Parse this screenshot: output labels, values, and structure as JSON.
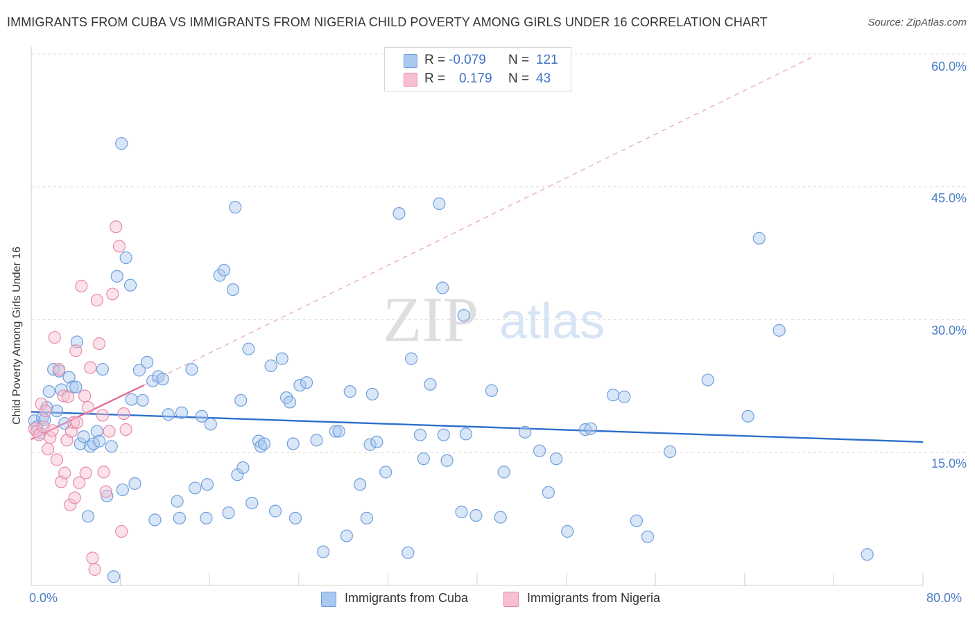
{
  "title": "IMMIGRANTS FROM CUBA VS IMMIGRANTS FROM NIGERIA CHILD POVERTY AMONG GIRLS UNDER 16 CORRELATION CHART",
  "source": "Source: ZipAtlas.com",
  "watermark": {
    "zip": "ZIP",
    "atlas": "atlas"
  },
  "stats": [
    {
      "r_label": "R =",
      "r_value": "-0.079",
      "n_label": "N =",
      "n_value": "121",
      "color": "#a9c8f0",
      "border": "#6f9fdc"
    },
    {
      "r_label": "R =",
      "r_value": "0.179",
      "n_label": "N =",
      "n_value": "43",
      "color": "#f7bfd0",
      "border": "#e78aa7"
    }
  ],
  "legend": [
    {
      "label": "Immigrants from Cuba",
      "color": "#a9c8f0",
      "border": "#6f9fdc"
    },
    {
      "label": "Immigrants from Nigeria",
      "color": "#f7bfd0",
      "border": "#e78aa7"
    }
  ],
  "chart_data": {
    "type": "scatter",
    "title": "IMMIGRANTS FROM CUBA VS IMMIGRANTS FROM NIGERIA CHILD POVERTY AMONG GIRLS UNDER 16 CORRELATION CHART",
    "xlabel": "",
    "ylabel": "Child Poverty Among Girls Under 16",
    "xlim": [
      0,
      80
    ],
    "ylim": [
      0,
      60
    ],
    "x_tick_labels": [
      "0.0%",
      "80.0%"
    ],
    "y_tick_labels": [
      {
        "value": 15,
        "label": "15.0%"
      },
      {
        "value": 30,
        "label": "30.0%"
      },
      {
        "value": 45,
        "label": "45.0%"
      },
      {
        "value": 60,
        "label": "60.0%"
      }
    ],
    "grid": true,
    "series": [
      {
        "name": "Immigrants from Cuba",
        "color": "#a9c8f0",
        "edge": "#6f9fdc",
        "trend": {
          "x": [
            0,
            80
          ],
          "y": [
            19.6,
            16.2
          ],
          "color": "#2e6fcc"
        },
        "points": [
          [
            0.3,
            18.6
          ],
          [
            0.5,
            17.9
          ],
          [
            0.8,
            17.2
          ],
          [
            1.0,
            18.9
          ],
          [
            1.2,
            18.7
          ],
          [
            1.4,
            20.1
          ],
          [
            1.6,
            21.9
          ],
          [
            2.0,
            24.4
          ],
          [
            2.3,
            19.7
          ],
          [
            2.5,
            24.2
          ],
          [
            2.7,
            22.1
          ],
          [
            3.0,
            18.3
          ],
          [
            3.4,
            23.5
          ],
          [
            3.7,
            22.4
          ],
          [
            4.0,
            22.4
          ],
          [
            4.1,
            27.5
          ],
          [
            4.4,
            16.0
          ],
          [
            4.7,
            16.8
          ],
          [
            5.1,
            7.8
          ],
          [
            5.3,
            15.7
          ],
          [
            5.6,
            16.0
          ],
          [
            5.9,
            17.4
          ],
          [
            6.1,
            16.3
          ],
          [
            6.4,
            24.4
          ],
          [
            6.8,
            10.1
          ],
          [
            7.2,
            15.7
          ],
          [
            7.4,
            1.0
          ],
          [
            7.7,
            34.9
          ],
          [
            8.1,
            49.9
          ],
          [
            8.2,
            10.8
          ],
          [
            8.5,
            37.0
          ],
          [
            8.9,
            33.9
          ],
          [
            9.0,
            21.0
          ],
          [
            9.3,
            11.5
          ],
          [
            9.7,
            24.3
          ],
          [
            10.0,
            20.9
          ],
          [
            10.4,
            25.2
          ],
          [
            10.9,
            23.1
          ],
          [
            11.1,
            7.4
          ],
          [
            11.4,
            23.6
          ],
          [
            11.8,
            23.3
          ],
          [
            12.3,
            19.3
          ],
          [
            13.1,
            9.5
          ],
          [
            13.3,
            7.6
          ],
          [
            13.5,
            19.5
          ],
          [
            14.4,
            24.4
          ],
          [
            14.7,
            11.0
          ],
          [
            15.3,
            19.1
          ],
          [
            15.7,
            7.6
          ],
          [
            15.8,
            11.4
          ],
          [
            16.1,
            18.2
          ],
          [
            16.9,
            35.0
          ],
          [
            17.3,
            35.6
          ],
          [
            17.7,
            8.2
          ],
          [
            18.1,
            33.4
          ],
          [
            18.3,
            42.7
          ],
          [
            18.5,
            12.5
          ],
          [
            18.8,
            20.9
          ],
          [
            19.0,
            13.3
          ],
          [
            19.5,
            26.7
          ],
          [
            19.8,
            9.3
          ],
          [
            20.4,
            16.3
          ],
          [
            20.6,
            15.7
          ],
          [
            20.9,
            16.0
          ],
          [
            21.5,
            24.8
          ],
          [
            21.9,
            8.4
          ],
          [
            22.5,
            25.6
          ],
          [
            22.9,
            21.2
          ],
          [
            23.2,
            20.7
          ],
          [
            23.5,
            16.0
          ],
          [
            23.7,
            7.6
          ],
          [
            24.1,
            22.6
          ],
          [
            24.7,
            22.9
          ],
          [
            25.6,
            16.4
          ],
          [
            26.2,
            3.8
          ],
          [
            27.3,
            17.4
          ],
          [
            27.6,
            17.4
          ],
          [
            28.3,
            5.6
          ],
          [
            28.6,
            21.9
          ],
          [
            29.5,
            11.4
          ],
          [
            30.1,
            7.6
          ],
          [
            30.4,
            15.9
          ],
          [
            30.6,
            21.6
          ],
          [
            31.0,
            16.2
          ],
          [
            31.8,
            12.8
          ],
          [
            33.0,
            42.0
          ],
          [
            33.8,
            3.7
          ],
          [
            34.1,
            25.6
          ],
          [
            34.9,
            17.0
          ],
          [
            35.2,
            14.3
          ],
          [
            35.8,
            22.7
          ],
          [
            36.6,
            43.1
          ],
          [
            36.9,
            33.6
          ],
          [
            37.0,
            17.0
          ],
          [
            37.3,
            14.1
          ],
          [
            38.6,
            8.3
          ],
          [
            38.8,
            30.5
          ],
          [
            39.0,
            17.1
          ],
          [
            39.9,
            7.9
          ],
          [
            41.3,
            22.0
          ],
          [
            42.1,
            7.7
          ],
          [
            42.4,
            12.8
          ],
          [
            44.3,
            17.3
          ],
          [
            45.6,
            15.2
          ],
          [
            46.4,
            10.5
          ],
          [
            47.1,
            14.3
          ],
          [
            48.1,
            6.1
          ],
          [
            49.7,
            17.6
          ],
          [
            50.2,
            17.7
          ],
          [
            52.2,
            21.5
          ],
          [
            53.2,
            21.3
          ],
          [
            54.3,
            7.3
          ],
          [
            55.3,
            5.5
          ],
          [
            57.3,
            15.1
          ],
          [
            60.7,
            23.2
          ],
          [
            64.3,
            19.1
          ],
          [
            65.3,
            39.2
          ],
          [
            67.1,
            28.8
          ],
          [
            75.0,
            3.5
          ]
        ]
      },
      {
        "name": "Immigrants from Nigeria",
        "color": "#f7bfd0",
        "edge": "#e78aa7",
        "trend": {
          "x": [
            0,
            10.1
          ],
          "y": [
            16.5,
            22.6
          ],
          "color": "#e26b95"
        },
        "dashed_extension": {
          "x": [
            10.1,
            70.0
          ],
          "y": [
            22.6,
            59.6
          ],
          "color": "#e8a8bd"
        },
        "points": [
          [
            0.3,
            17.7
          ],
          [
            0.5,
            17.4
          ],
          [
            0.7,
            17.0
          ],
          [
            0.9,
            20.5
          ],
          [
            1.1,
            17.9
          ],
          [
            1.3,
            19.7
          ],
          [
            1.5,
            15.4
          ],
          [
            1.7,
            16.7
          ],
          [
            1.9,
            17.5
          ],
          [
            2.1,
            28.0
          ],
          [
            2.3,
            14.2
          ],
          [
            2.5,
            24.4
          ],
          [
            2.7,
            11.7
          ],
          [
            2.9,
            21.4
          ],
          [
            3.0,
            12.7
          ],
          [
            3.2,
            16.4
          ],
          [
            3.3,
            21.3
          ],
          [
            3.5,
            9.1
          ],
          [
            3.6,
            17.4
          ],
          [
            3.8,
            18.4
          ],
          [
            3.9,
            9.9
          ],
          [
            4.0,
            26.5
          ],
          [
            4.1,
            18.4
          ],
          [
            4.3,
            11.6
          ],
          [
            4.5,
            33.8
          ],
          [
            4.8,
            21.4
          ],
          [
            4.9,
            12.7
          ],
          [
            5.1,
            20.1
          ],
          [
            5.3,
            24.6
          ],
          [
            5.5,
            3.1
          ],
          [
            5.7,
            1.8
          ],
          [
            5.9,
            32.2
          ],
          [
            6.1,
            27.3
          ],
          [
            6.4,
            19.2
          ],
          [
            6.5,
            12.8
          ],
          [
            6.7,
            10.6
          ],
          [
            7.0,
            17.4
          ],
          [
            7.3,
            32.9
          ],
          [
            7.6,
            40.5
          ],
          [
            7.9,
            38.3
          ],
          [
            8.1,
            6.1
          ],
          [
            8.3,
            19.4
          ],
          [
            8.5,
            17.6
          ]
        ]
      }
    ]
  }
}
